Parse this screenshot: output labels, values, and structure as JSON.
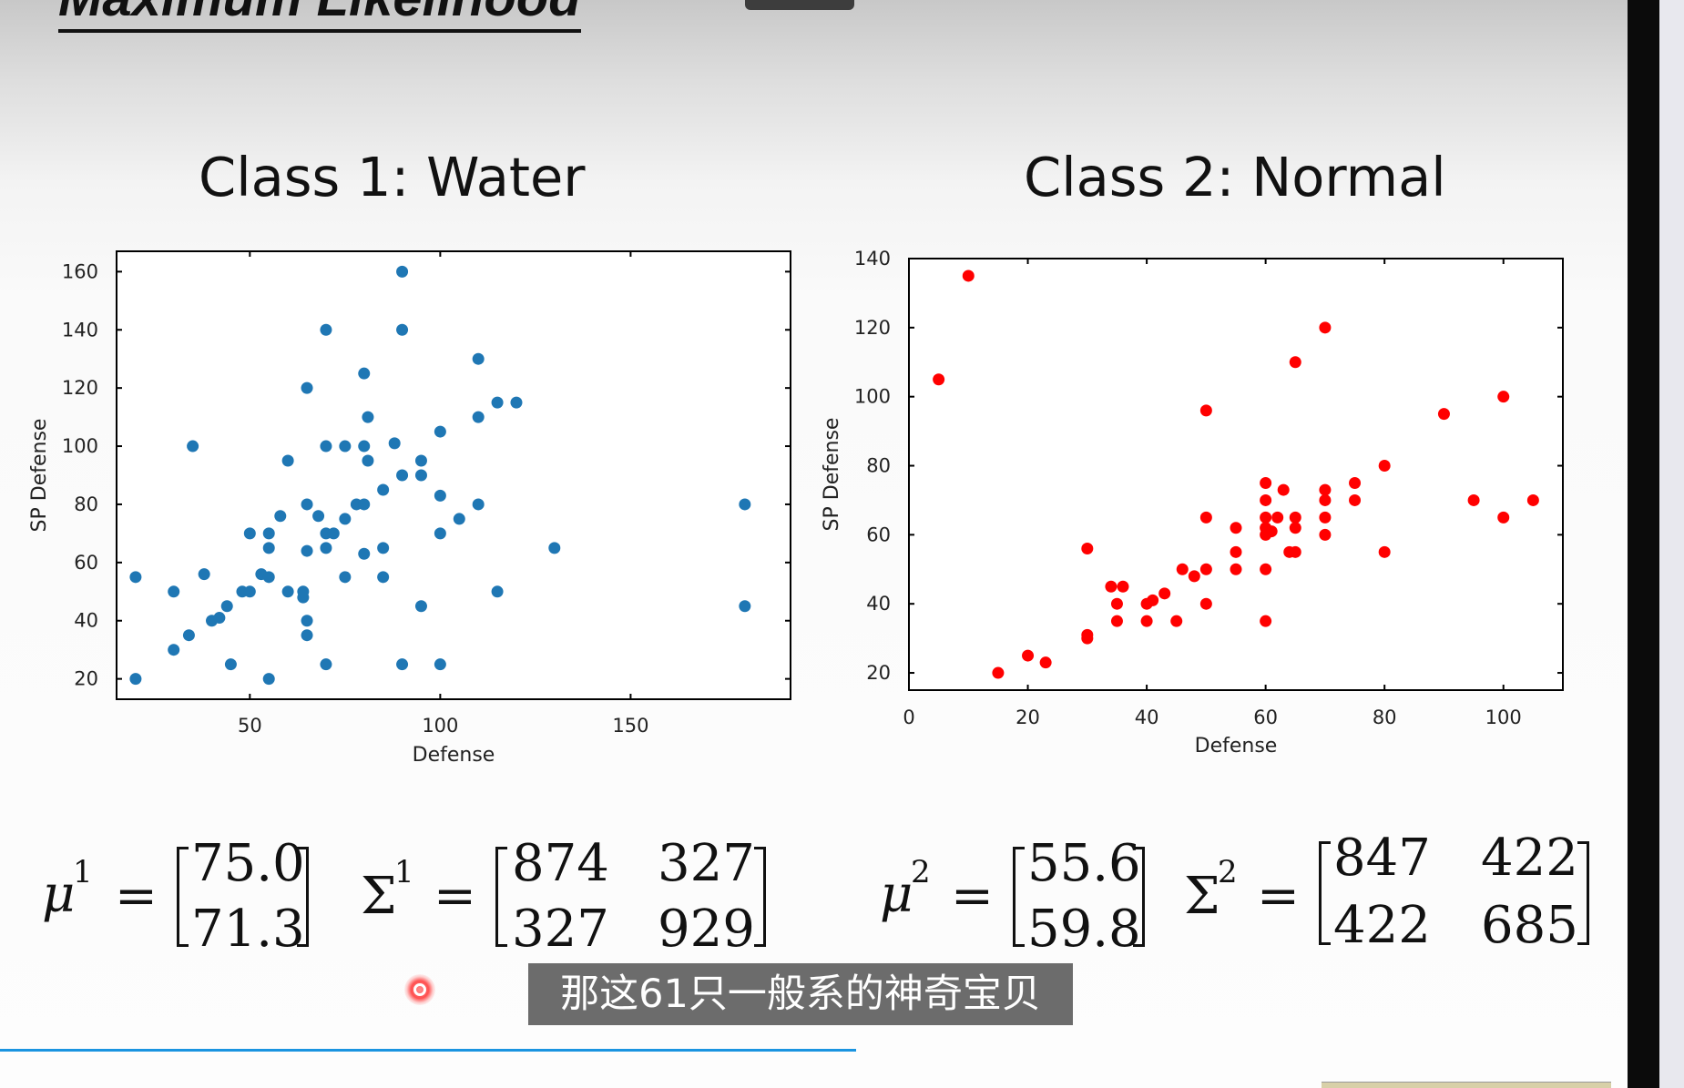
{
  "slide": {
    "heading": "Maximum Likelihood",
    "subtitle": "那这61只一般系的神奇宝贝",
    "colors": {
      "class1": "#1f77b4",
      "class2": "#ff0000"
    }
  },
  "chart_data": [
    {
      "type": "scatter",
      "title": "Class 1: Water",
      "xlabel": "Defense",
      "ylabel": "SP Defense",
      "xlim": [
        15,
        192
      ],
      "ylim": [
        13,
        167
      ],
      "xticks": [
        50,
        100,
        150
      ],
      "yticks": [
        20,
        40,
        60,
        80,
        100,
        120,
        140,
        160
      ],
      "color": "#1f77b4",
      "points": [
        [
          20,
          20
        ],
        [
          20,
          55
        ],
        [
          30,
          30
        ],
        [
          30,
          50
        ],
        [
          34,
          35
        ],
        [
          35,
          100
        ],
        [
          38,
          56
        ],
        [
          40,
          40
        ],
        [
          42,
          41
        ],
        [
          44,
          45
        ],
        [
          45,
          25
        ],
        [
          48,
          50
        ],
        [
          50,
          50
        ],
        [
          50,
          70
        ],
        [
          53,
          56
        ],
        [
          55,
          20
        ],
        [
          55,
          55
        ],
        [
          55,
          65
        ],
        [
          55,
          70
        ],
        [
          58,
          76
        ],
        [
          60,
          50
        ],
        [
          60,
          95
        ],
        [
          64,
          48
        ],
        [
          64,
          50
        ],
        [
          65,
          35
        ],
        [
          65,
          40
        ],
        [
          65,
          64
        ],
        [
          65,
          80
        ],
        [
          65,
          120
        ],
        [
          68,
          76
        ],
        [
          70,
          25
        ],
        [
          70,
          65
        ],
        [
          70,
          70
        ],
        [
          70,
          100
        ],
        [
          70,
          140
        ],
        [
          72,
          70
        ],
        [
          75,
          55
        ],
        [
          75,
          75
        ],
        [
          75,
          100
        ],
        [
          78,
          80
        ],
        [
          80,
          100
        ],
        [
          80,
          125
        ],
        [
          80,
          80
        ],
        [
          80,
          63
        ],
        [
          81,
          95
        ],
        [
          81,
          110
        ],
        [
          85,
          55
        ],
        [
          85,
          65
        ],
        [
          85,
          85
        ],
        [
          88,
          101
        ],
        [
          90,
          25
        ],
        [
          90,
          90
        ],
        [
          90,
          140
        ],
        [
          90,
          160
        ],
        [
          95,
          45
        ],
        [
          95,
          90
        ],
        [
          95,
          95
        ],
        [
          100,
          25
        ],
        [
          100,
          70
        ],
        [
          100,
          83
        ],
        [
          100,
          105
        ],
        [
          105,
          75
        ],
        [
          110,
          80
        ],
        [
          110,
          110
        ],
        [
          110,
          130
        ],
        [
          115,
          50
        ],
        [
          115,
          115
        ],
        [
          120,
          115
        ],
        [
          130,
          65
        ],
        [
          180,
          80
        ],
        [
          180,
          45
        ]
      ]
    },
    {
      "type": "scatter",
      "title": "Class 2: Normal",
      "xlabel": "Defense",
      "ylabel": "SP Defense",
      "xlim": [
        0,
        110
      ],
      "ylim": [
        15,
        140
      ],
      "xticks": [
        0,
        20,
        40,
        60,
        80,
        100
      ],
      "yticks": [
        20,
        40,
        60,
        80,
        100,
        120,
        140
      ],
      "color": "#ff0000",
      "points": [
        [
          5,
          105
        ],
        [
          10,
          135
        ],
        [
          15,
          20
        ],
        [
          20,
          25
        ],
        [
          23,
          23
        ],
        [
          30,
          30
        ],
        [
          30,
          31
        ],
        [
          30,
          56
        ],
        [
          34,
          45
        ],
        [
          35,
          35
        ],
        [
          35,
          40
        ],
        [
          36,
          45
        ],
        [
          40,
          35
        ],
        [
          40,
          40
        ],
        [
          41,
          41
        ],
        [
          43,
          43
        ],
        [
          45,
          35
        ],
        [
          46,
          50
        ],
        [
          48,
          48
        ],
        [
          50,
          40
        ],
        [
          50,
          50
        ],
        [
          50,
          65
        ],
        [
          50,
          96
        ],
        [
          55,
          50
        ],
        [
          55,
          55
        ],
        [
          55,
          62
        ],
        [
          60,
          35
        ],
        [
          60,
          50
        ],
        [
          60,
          60
        ],
        [
          60,
          62
        ],
        [
          60,
          65
        ],
        [
          60,
          70
        ],
        [
          60,
          75
        ],
        [
          61,
          61
        ],
        [
          62,
          65
        ],
        [
          63,
          73
        ],
        [
          64,
          55
        ],
        [
          65,
          55
        ],
        [
          65,
          62
        ],
        [
          65,
          65
        ],
        [
          65,
          110
        ],
        [
          70,
          60
        ],
        [
          70,
          65
        ],
        [
          70,
          70
        ],
        [
          70,
          73
        ],
        [
          70,
          120
        ],
        [
          75,
          70
        ],
        [
          75,
          75
        ],
        [
          80,
          55
        ],
        [
          80,
          80
        ],
        [
          90,
          95
        ],
        [
          95,
          70
        ],
        [
          100,
          65
        ],
        [
          100,
          100
        ],
        [
          105,
          70
        ]
      ]
    }
  ],
  "formulas": [
    {
      "mu_symbol": "μ",
      "mu_sup": "1",
      "eq": "=",
      "mu": [
        "75.0",
        "71.3"
      ],
      "sigma_symbol": "Σ",
      "sigma_sup": "1",
      "sigma": [
        [
          "874",
          "327"
        ],
        [
          "327",
          "929"
        ]
      ]
    },
    {
      "mu_symbol": "μ",
      "mu_sup": "2",
      "eq": "=",
      "mu": [
        "55.6",
        "59.8"
      ],
      "sigma_symbol": "Σ",
      "sigma_sup": "2",
      "sigma": [
        [
          "847",
          "422"
        ],
        [
          "422",
          "685"
        ]
      ]
    }
  ]
}
